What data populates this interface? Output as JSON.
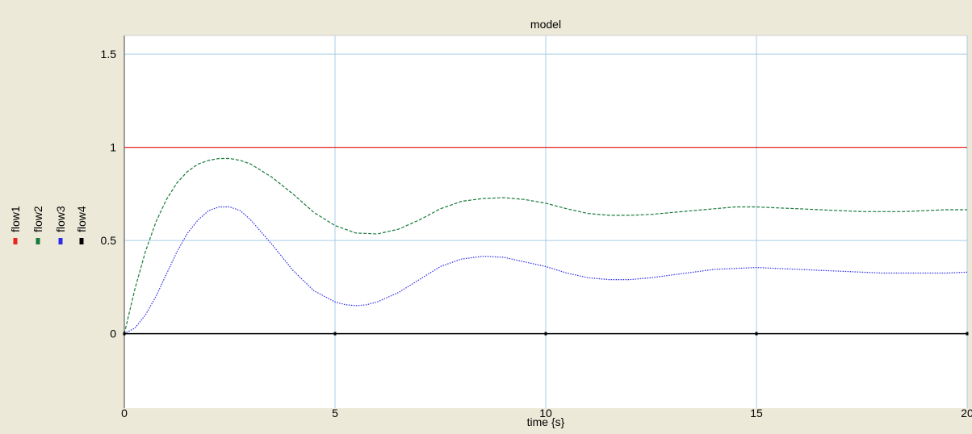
{
  "colors": {
    "background": "#ece9d8",
    "plot_area": "#ffffff",
    "grid": "#a9cde6",
    "axis": "#7f7f7f"
  },
  "chart_data": {
    "type": "line",
    "title": "model",
    "xlabel": "time {s}",
    "ylabel": "",
    "xlim": [
      0,
      20
    ],
    "ylim": [
      -0.4,
      1.6
    ],
    "xticks": [
      0,
      5,
      10,
      15,
      20
    ],
    "yticks": [
      0,
      0.5,
      1,
      1.5
    ],
    "grid": true,
    "legend_position": "left-vertical",
    "series": [
      {
        "name": "flow1",
        "color": "#e8251f",
        "dash": "solid",
        "x": [
          0,
          20
        ],
        "y": [
          1,
          1
        ]
      },
      {
        "name": "flow2",
        "color": "#1a7a3c",
        "dash": "dashed",
        "x": [
          0,
          0.25,
          0.5,
          0.75,
          1,
          1.25,
          1.5,
          1.75,
          2,
          2.25,
          2.5,
          2.75,
          3,
          3.5,
          4,
          4.5,
          5,
          5.5,
          6,
          6.5,
          7,
          7.5,
          8,
          8.5,
          9,
          9.5,
          10,
          10.5,
          11,
          11.5,
          12,
          12.5,
          13,
          13.5,
          14,
          14.5,
          15,
          15.5,
          16,
          16.5,
          17,
          17.5,
          18,
          18.5,
          19,
          19.5,
          20
        ],
        "y": [
          0,
          0.24,
          0.44,
          0.6,
          0.72,
          0.81,
          0.87,
          0.91,
          0.93,
          0.94,
          0.94,
          0.93,
          0.91,
          0.84,
          0.75,
          0.65,
          0.58,
          0.54,
          0.535,
          0.56,
          0.61,
          0.67,
          0.71,
          0.725,
          0.73,
          0.72,
          0.7,
          0.67,
          0.645,
          0.635,
          0.635,
          0.64,
          0.65,
          0.66,
          0.67,
          0.68,
          0.68,
          0.675,
          0.67,
          0.665,
          0.66,
          0.655,
          0.655,
          0.655,
          0.66,
          0.665,
          0.665
        ]
      },
      {
        "name": "flow3",
        "color": "#2a2ae8",
        "dash": "dotted",
        "x": [
          0,
          0.25,
          0.5,
          0.75,
          1,
          1.25,
          1.5,
          1.75,
          2,
          2.25,
          2.5,
          2.75,
          3,
          3.5,
          4,
          4.5,
          5,
          5.25,
          5.5,
          5.75,
          6,
          6.5,
          7,
          7.5,
          8,
          8.5,
          9,
          9.5,
          10,
          10.5,
          11,
          11.5,
          12,
          12.5,
          13,
          13.5,
          14,
          14.5,
          15,
          15.5,
          16,
          16.5,
          17,
          17.5,
          18,
          18.5,
          19,
          19.5,
          20
        ],
        "y": [
          0,
          0.03,
          0.1,
          0.2,
          0.32,
          0.44,
          0.54,
          0.61,
          0.66,
          0.68,
          0.68,
          0.66,
          0.61,
          0.48,
          0.34,
          0.23,
          0.17,
          0.155,
          0.15,
          0.155,
          0.17,
          0.22,
          0.29,
          0.36,
          0.4,
          0.415,
          0.41,
          0.385,
          0.36,
          0.325,
          0.3,
          0.29,
          0.29,
          0.3,
          0.315,
          0.33,
          0.345,
          0.35,
          0.355,
          0.35,
          0.345,
          0.34,
          0.335,
          0.33,
          0.325,
          0.325,
          0.325,
          0.325,
          0.33
        ]
      },
      {
        "name": "flow4",
        "color": "#000000",
        "dash": "solid",
        "x": [
          0,
          20
        ],
        "y": [
          0,
          0
        ]
      }
    ]
  }
}
